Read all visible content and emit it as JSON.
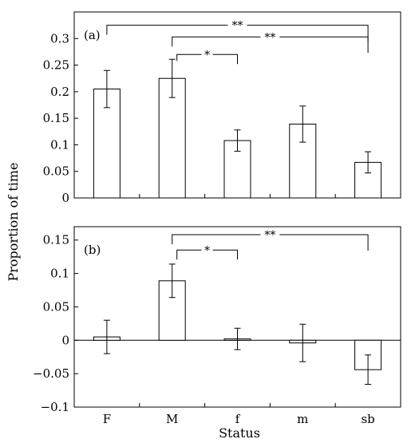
{
  "chart_data": {
    "type": "bar",
    "xlabel": "Status",
    "ylabel": "Proportion of time",
    "categories": [
      "F",
      "M",
      "f",
      "m",
      "sb"
    ],
    "panels": [
      {
        "label": "(a)",
        "ylim": [
          0,
          0.35
        ],
        "yticks": [
          0,
          0.05,
          0.1,
          0.15,
          0.2,
          0.25,
          0.3
        ],
        "ytick_labels": [
          "0",
          "0.05",
          "0.1",
          "0.15",
          "0.2",
          "0.25",
          "0.3"
        ],
        "values": [
          0.205,
          0.225,
          0.108,
          0.139,
          0.067
        ],
        "errors": [
          0.035,
          0.036,
          0.02,
          0.034,
          0.02
        ],
        "brackets": [
          {
            "from": 0,
            "to": 4,
            "level": 0.325,
            "label": "**"
          },
          {
            "from": 1,
            "to": 4,
            "level": 0.303,
            "label": "**"
          },
          {
            "from": 1,
            "to": 2,
            "level": 0.27,
            "label": "*"
          }
        ]
      },
      {
        "label": "(b)",
        "ylim": [
          -0.1,
          0.17
        ],
        "yticks": [
          -0.1,
          -0.05,
          0,
          0.05,
          0.1,
          0.15
        ],
        "ytick_labels": [
          "−0.1",
          "−0.05",
          "0",
          "0.05",
          "0.1",
          "0.15"
        ],
        "values": [
          0.005,
          0.089,
          0.002,
          -0.004,
          -0.044
        ],
        "errors": [
          0.025,
          0.025,
          0.016,
          0.028,
          0.022
        ],
        "brackets": [
          {
            "from": 1,
            "to": 4,
            "level": 0.158,
            "label": "**"
          },
          {
            "from": 1,
            "to": 2,
            "level": 0.135,
            "label": "*"
          }
        ]
      }
    ]
  }
}
